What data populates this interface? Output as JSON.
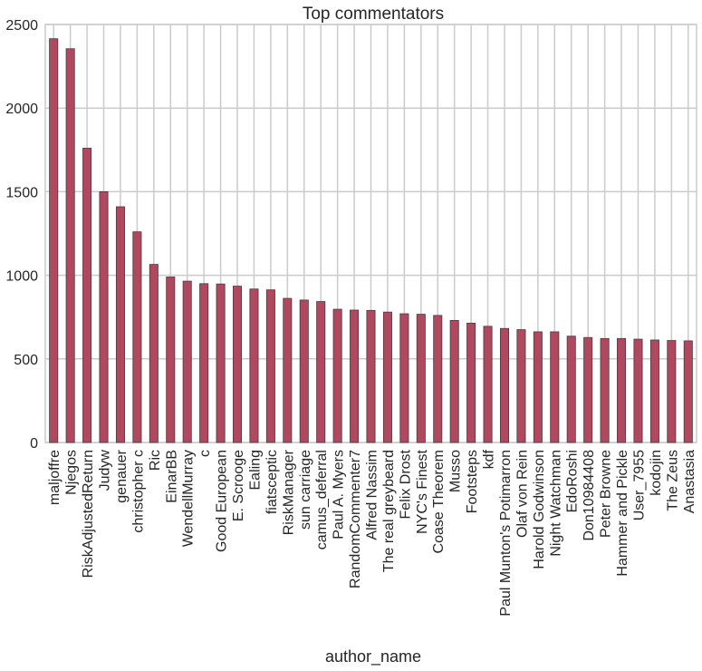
{
  "chart_data": {
    "type": "bar",
    "title": "Top commentators",
    "xlabel": "author_name",
    "ylabel": "",
    "ylim": [
      0,
      2500
    ],
    "yticks": [
      0,
      500,
      1000,
      1500,
      2000,
      2500
    ],
    "grid": true,
    "bar_color": "#b0485f",
    "grid_color": "#cbcbcb",
    "categories": [
      "maljoffre",
      "Njegos",
      "RiskAdjustedReturn",
      "Judyw",
      "genauer",
      "christopher c",
      "Ric",
      "EinarBB",
      "WendellMurray",
      "c",
      "Good European",
      "E. Scrooge",
      "Ealing",
      "fiatsceptic",
      "RiskManager",
      "sun carriage",
      "camus_deferral",
      "Paul A. Myers",
      "RandomCommenter7",
      "Alfred Nassim",
      "The real greybeard",
      "Felix Drost",
      "NYC's Finest",
      "Coase Theorem",
      "Musso",
      "Footsteps",
      "kdf",
      "Paul Munton's Potimarron",
      "Olaf von Rein",
      "Harold Godwinson",
      "Night Watchman",
      "EdoRoshi",
      "Don10984408",
      "Peter Browne",
      "Hammer and Pickle",
      "User_7955",
      "kodojin",
      "The Zeus",
      "Anastasia"
    ],
    "values": [
      2415,
      2355,
      1760,
      1500,
      1410,
      1260,
      1065,
      990,
      965,
      950,
      948,
      935,
      918,
      913,
      862,
      852,
      843,
      797,
      792,
      790,
      780,
      770,
      767,
      760,
      730,
      714,
      695,
      682,
      675,
      662,
      662,
      636,
      628,
      622,
      622,
      618,
      613,
      610,
      608
    ]
  }
}
